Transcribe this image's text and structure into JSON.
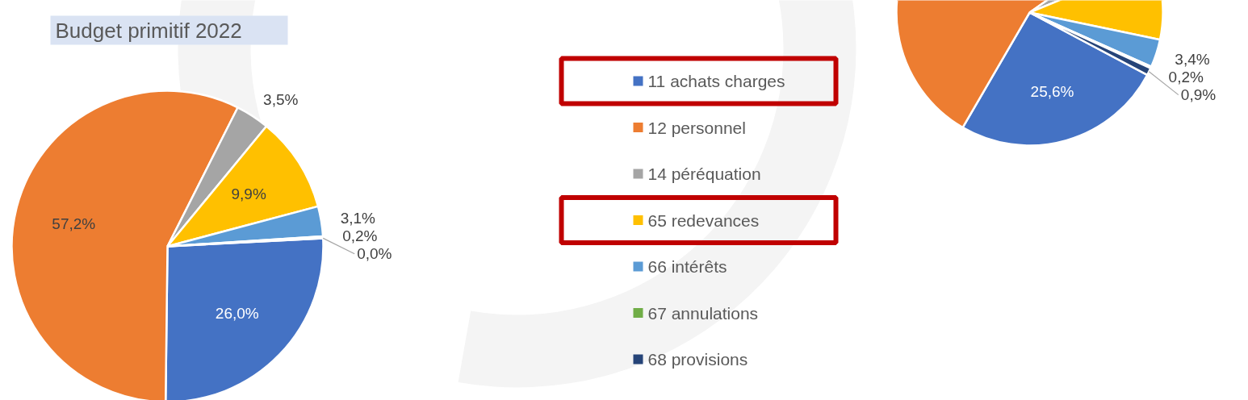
{
  "chart_data": [
    {
      "type": "pie",
      "title": "Budget primitif 2022",
      "legend": "right",
      "categories": [
        "11 achats charges",
        "12 personnel",
        "14 péréquation",
        "65 redevances",
        "66 intérêts",
        "67 annulations",
        "68 provisions"
      ],
      "values": [
        26.0,
        57.2,
        3.5,
        9.9,
        3.1,
        0.2,
        0.0
      ],
      "value_labels": [
        "26,0%",
        "57,2%",
        "3,5%",
        "9,9%",
        "3,1%",
        "0,2%",
        "0,0%"
      ],
      "colors": [
        "#4472c4",
        "#ed7d31",
        "#a5a5a5",
        "#ffc000",
        "#5b9bd5",
        "#70ad47",
        "#264478"
      ]
    },
    {
      "type": "pie",
      "categories": [
        null,
        null,
        null,
        null,
        null,
        null,
        null
      ],
      "values": [
        25.6,
        56.9,
        3.5,
        9.5,
        3.4,
        0.2,
        0.9
      ],
      "value_labels": [
        "25,6%",
        null,
        null,
        null,
        "3,4%",
        "0,2%",
        "0,9%"
      ],
      "colors": [
        "#4472c4",
        "#ed7d31",
        "#a5a5a5",
        "#ffc000",
        "#5b9bd5",
        "#70ad47",
        "#264478"
      ]
    }
  ]
}
